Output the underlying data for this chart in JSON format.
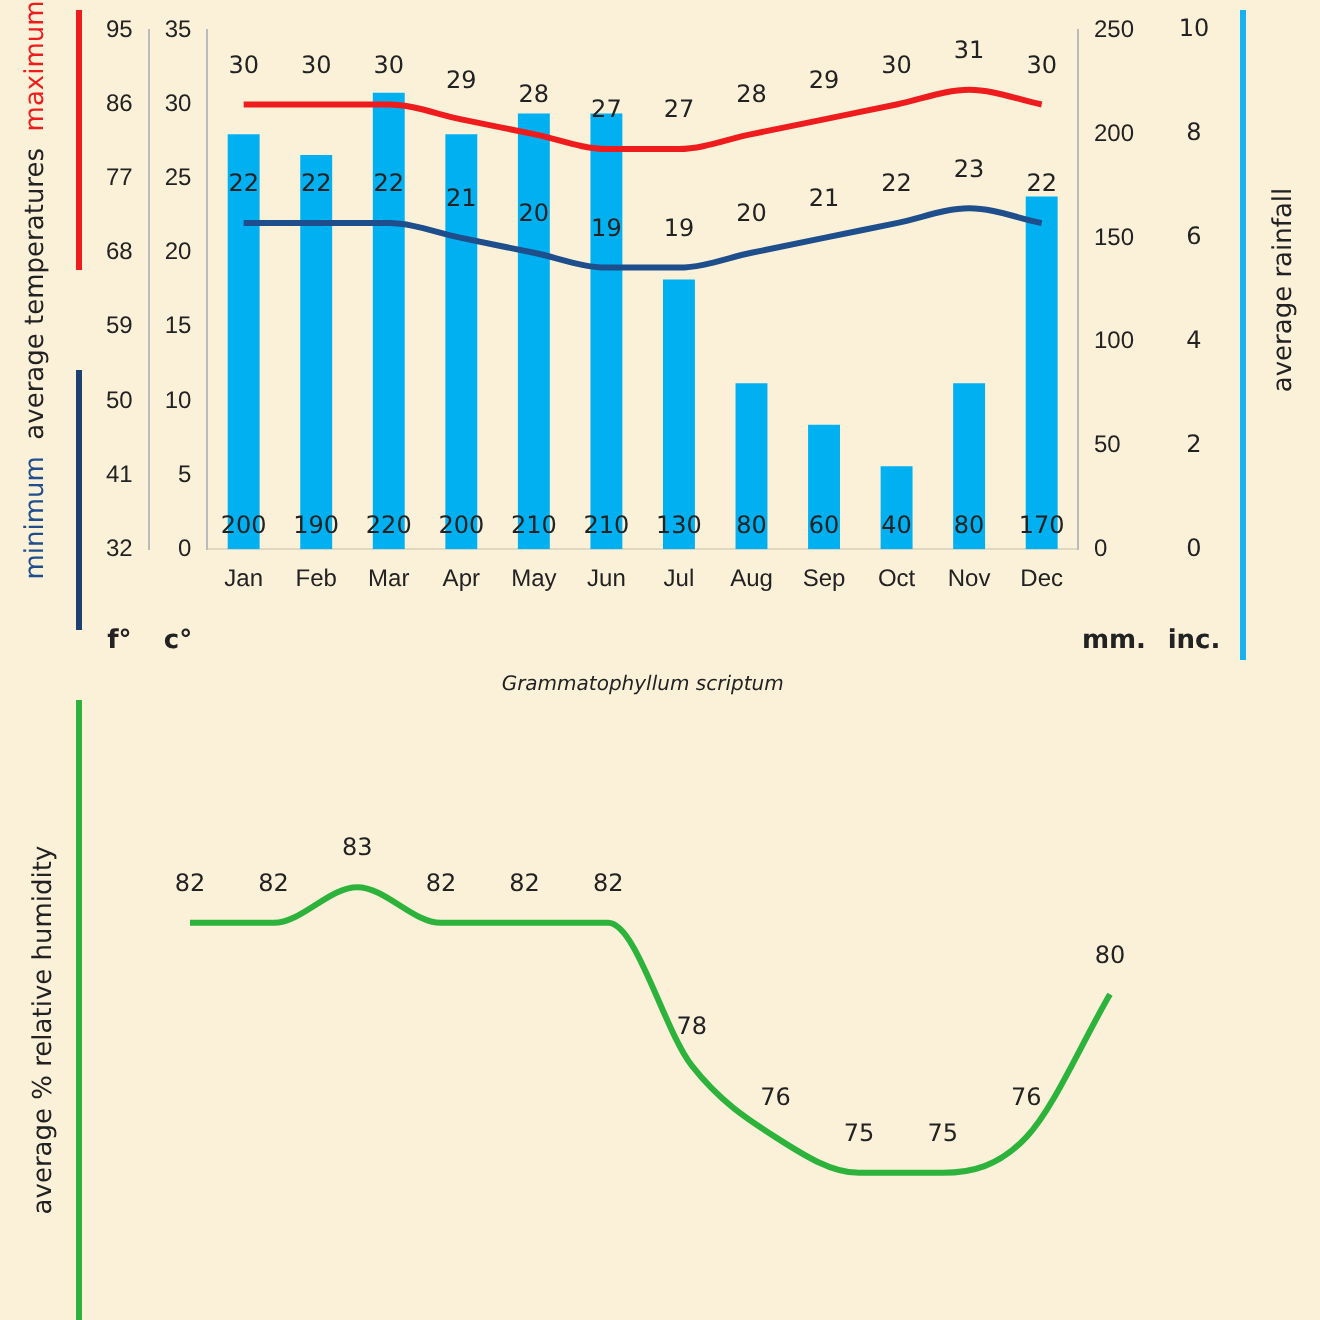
{
  "chart_data": [
    {
      "type": "bar",
      "categories": [
        "Jan",
        "Feb",
        "Mar",
        "Apr",
        "May",
        "Jun",
        "Jul",
        "Aug",
        "Sep",
        "Oct",
        "Nov",
        "Dec"
      ],
      "ylabel": "average temperatures",
      "y2label": "average rainfall",
      "series": [
        {
          "axis": "y2",
          "color": "#00b0f0",
          "values": [
            200,
            190,
            220,
            200,
            210,
            210,
            130,
            80,
            60,
            40,
            80,
            170
          ]
        },
        {
          "type": "line",
          "name": "maximum",
          "color": "#ee1c1c",
          "values": [
            30,
            30,
            30,
            29,
            28,
            27,
            27,
            28,
            29,
            30,
            31,
            30
          ]
        },
        {
          "type": "line",
          "name": "minimum",
          "color": "#1f4e8c",
          "values": [
            22,
            22,
            22,
            21,
            20,
            19,
            19,
            20,
            21,
            22,
            23,
            22
          ]
        }
      ],
      "ylim": [
        0,
        35
      ],
      "yticks": [
        0,
        5,
        10,
        15,
        20,
        25,
        30,
        35
      ],
      "y2lim": [
        0,
        250
      ],
      "y2ticks": [
        0,
        50,
        100,
        150,
        200,
        250
      ],
      "y3lim": [
        32,
        95
      ],
      "y3ticks": [
        32,
        41,
        50,
        59,
        68,
        77,
        86,
        95
      ],
      "data_labels": true,
      "legend": false,
      "grid": false,
      "marker": "none",
      "annotations": [
        "f°",
        "c°",
        "mm.",
        "inc.",
        "Grammatophyllum scriptum",
        "0",
        "2",
        "4",
        "6",
        "8",
        "10"
      ]
    },
    {
      "type": "line",
      "categories": [
        null,
        null,
        null,
        null,
        null,
        null,
        null,
        null,
        null,
        null,
        null,
        null
      ],
      "ylabel": "average % relative humidity",
      "series": [
        {
          "color": "#2db33c",
          "values": [
            82,
            82,
            83,
            82,
            82,
            82,
            78,
            76,
            75,
            75,
            76,
            80
          ]
        }
      ],
      "data_labels": true,
      "legend": false,
      "grid": false,
      "tick_labels": false,
      "marker": "none"
    }
  ]
}
